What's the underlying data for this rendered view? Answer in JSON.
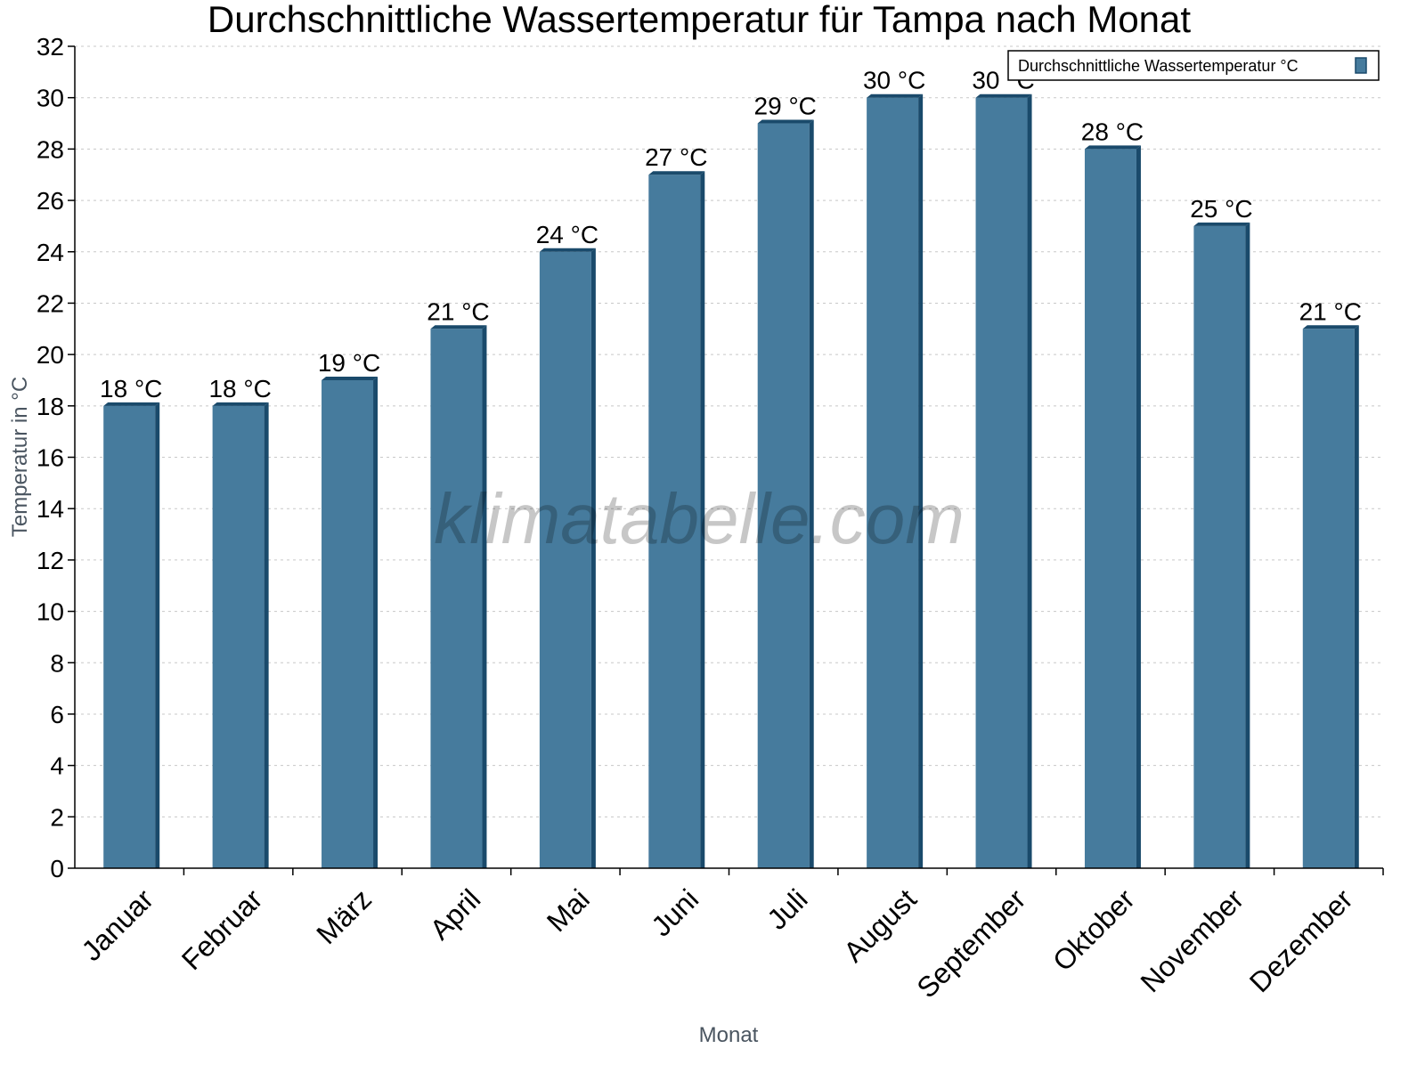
{
  "chart_data": {
    "type": "bar",
    "title": "Durchschnittliche Wassertemperatur für Tampa nach Monat",
    "xlabel": "Monat",
    "ylabel": "Temperatur in °C",
    "ylim": [
      0,
      32
    ],
    "yticks": [
      0,
      2,
      4,
      6,
      8,
      10,
      12,
      14,
      16,
      18,
      20,
      22,
      24,
      26,
      28,
      30,
      32
    ],
    "grid": true,
    "legend_position": "top-right",
    "categories": [
      "Januar",
      "Februar",
      "März",
      "April",
      "Mai",
      "Juni",
      "Juli",
      "August",
      "September",
      "Oktober",
      "November",
      "Dezember"
    ],
    "series": [
      {
        "name": "Durchschnittliche Wassertemperatur °C",
        "values": [
          18,
          18,
          19,
          21,
          24,
          27,
          29,
          30,
          30,
          28,
          25,
          21
        ]
      }
    ],
    "data_labels": [
      "18 °C",
      "18 °C",
      "19 °C",
      "21 °C",
      "24 °C",
      "27 °C",
      "29 °C",
      "30 °C",
      "30 °C",
      "28 °C",
      "25 °C",
      "21 °C"
    ],
    "watermark": "klimatabelle.com",
    "colors": {
      "bar_face": "#467b9d",
      "bar_side": "#1a4a6b",
      "grid": "#c8c8c8"
    }
  }
}
